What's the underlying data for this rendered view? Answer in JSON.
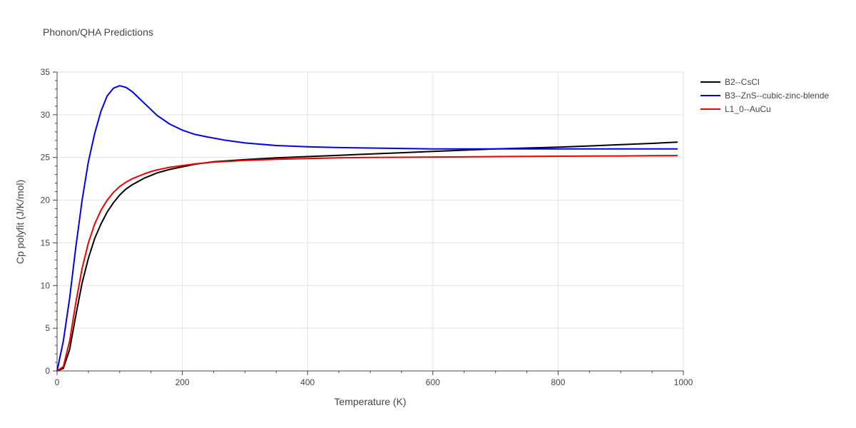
{
  "chart_data": {
    "type": "line",
    "title": "Phonon/QHA Predictions",
    "xlabel": "Temperature (K)",
    "ylabel": "Cp polyfit (J/K/mol)",
    "xlim": [
      0,
      1000
    ],
    "ylim": [
      0,
      35
    ],
    "xticks": [
      0,
      200,
      400,
      600,
      800,
      1000
    ],
    "yticks": [
      0,
      5,
      10,
      15,
      20,
      25,
      30,
      35
    ],
    "grid": true,
    "legend_position": "top-right-outside",
    "series": [
      {
        "name": "B2--CsCl",
        "color": "#000000",
        "x": [
          0,
          10,
          20,
          30,
          40,
          50,
          60,
          70,
          80,
          90,
          100,
          110,
          120,
          130,
          140,
          150,
          160,
          170,
          180,
          200,
          220,
          250,
          300,
          350,
          400,
          450,
          500,
          550,
          600,
          650,
          700,
          750,
          800,
          850,
          900,
          950,
          990
        ],
        "y": [
          0,
          0.3,
          2.5,
          6.5,
          10.3,
          13.2,
          15.5,
          17.2,
          18.6,
          19.7,
          20.6,
          21.3,
          21.8,
          22.2,
          22.6,
          22.9,
          23.2,
          23.4,
          23.6,
          23.9,
          24.2,
          24.5,
          24.75,
          24.95,
          25.1,
          25.25,
          25.4,
          25.55,
          25.7,
          25.85,
          26.0,
          26.1,
          26.2,
          26.35,
          26.5,
          26.65,
          26.8
        ]
      },
      {
        "name": "B3--ZnS--cubic-zinc-blende",
        "color": "#0000ee",
        "x": [
          0,
          10,
          20,
          30,
          40,
          50,
          60,
          70,
          80,
          90,
          100,
          110,
          120,
          130,
          140,
          150,
          160,
          170,
          180,
          200,
          220,
          240,
          270,
          300,
          350,
          400,
          450,
          500,
          550,
          600,
          650,
          700,
          750,
          800,
          850,
          900,
          950,
          990
        ],
        "y": [
          0,
          3.5,
          8.5,
          14.5,
          20.0,
          24.5,
          27.8,
          30.4,
          32.2,
          33.1,
          33.4,
          33.2,
          32.7,
          32.0,
          31.3,
          30.6,
          29.9,
          29.4,
          28.9,
          28.2,
          27.7,
          27.4,
          27.0,
          26.7,
          26.4,
          26.25,
          26.15,
          26.1,
          26.05,
          26.0,
          26.0,
          26.0,
          26.0,
          26.0,
          26.0,
          26.0,
          26.0,
          26.0
        ]
      },
      {
        "name": "L1_0--AuCu",
        "color": "#ee0000",
        "x": [
          0,
          10,
          20,
          30,
          40,
          50,
          60,
          70,
          80,
          90,
          100,
          110,
          120,
          130,
          140,
          150,
          160,
          170,
          180,
          200,
          220,
          250,
          300,
          350,
          400,
          450,
          500,
          550,
          600,
          650,
          700,
          750,
          800,
          850,
          900,
          950,
          990
        ],
        "y": [
          0,
          0.5,
          3.5,
          8.0,
          12.0,
          15.0,
          17.2,
          18.8,
          20.0,
          20.9,
          21.6,
          22.1,
          22.5,
          22.8,
          23.1,
          23.35,
          23.55,
          23.7,
          23.85,
          24.05,
          24.25,
          24.45,
          24.65,
          24.78,
          24.88,
          24.95,
          25.0,
          25.02,
          25.05,
          25.07,
          25.1,
          25.12,
          25.14,
          25.16,
          25.18,
          25.2,
          25.22
        ]
      }
    ]
  }
}
